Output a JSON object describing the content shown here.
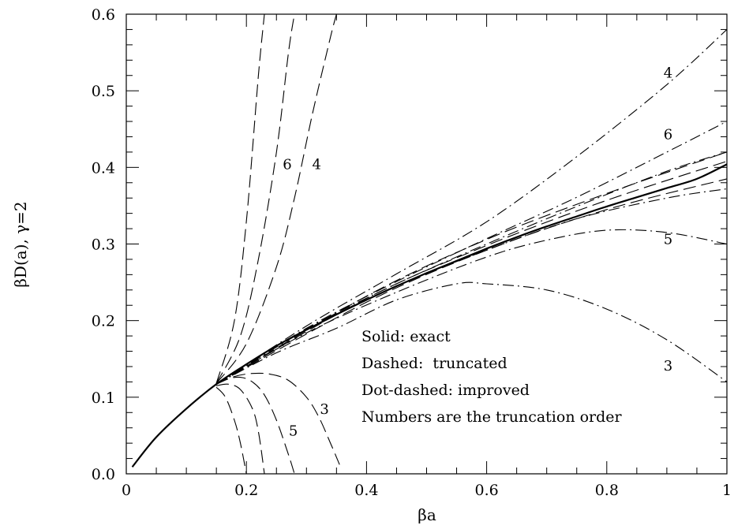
{
  "chart_data": {
    "type": "line",
    "xlabel": "βa",
    "ylabel": "βD(a), γ=2",
    "xlim": [
      0,
      1
    ],
    "ylim": [
      0,
      0.6
    ],
    "xticks": [
      "0",
      "0.2",
      "0.4",
      "0.6",
      "0.8",
      "1"
    ],
    "yticks": [
      "0.0",
      "0.1",
      "0.2",
      "0.3",
      "0.4",
      "0.5",
      "0.6"
    ],
    "grid": false,
    "legend_lines": [
      "Solid: exact",
      "Dashed:  truncated",
      "Dot-dashed: improved",
      "Numbers are the truncation order"
    ],
    "series": [
      {
        "style": "solid",
        "x": [
          0.01,
          0.05,
          0.1,
          0.15,
          0.2,
          0.25,
          0.3,
          0.35,
          0.4,
          0.45,
          0.5,
          0.55,
          0.6,
          0.65,
          0.7,
          0.75,
          0.8,
          0.85,
          0.9,
          0.95,
          1.0
        ],
        "y": [
          0.009,
          0.048,
          0.085,
          0.117,
          0.143,
          0.167,
          0.188,
          0.208,
          0.227,
          0.245,
          0.262,
          0.278,
          0.294,
          0.309,
          0.323,
          0.336,
          0.349,
          0.361,
          0.373,
          0.385,
          0.404
        ]
      },
      {
        "style": "dashed",
        "order": "3",
        "x": [
          0.15,
          0.18,
          0.21,
          0.24,
          0.27,
          0.3,
          0.32,
          0.34,
          0.355
        ],
        "y": [
          0.117,
          0.127,
          0.131,
          0.13,
          0.122,
          0.1,
          0.075,
          0.04,
          0.012
        ]
      },
      {
        "style": "dashed",
        "order": "5",
        "x": [
          0.15,
          0.17,
          0.19,
          0.21,
          0.23,
          0.25,
          0.27,
          0.28
        ],
        "y": [
          0.117,
          0.124,
          0.126,
          0.12,
          0.103,
          0.07,
          0.025,
          0.0
        ]
      },
      {
        "style": "dashed",
        "order": "",
        "x": [
          0.15,
          0.17,
          0.19,
          0.21,
          0.22,
          0.23
        ],
        "y": [
          0.115,
          0.117,
          0.11,
          0.085,
          0.055,
          0.0
        ]
      },
      {
        "style": "dashed",
        "order": "",
        "x": [
          0.15,
          0.165,
          0.18,
          0.19,
          0.2
        ],
        "y": [
          0.113,
          0.1,
          0.07,
          0.04,
          0.0
        ]
      },
      {
        "style": "dashed",
        "order": "4",
        "x": [
          0.15,
          0.2,
          0.25,
          0.28,
          0.31,
          0.34,
          0.35
        ],
        "y": [
          0.118,
          0.17,
          0.27,
          0.36,
          0.47,
          0.57,
          0.6
        ]
      },
      {
        "style": "dashed",
        "order": "6",
        "x": [
          0.15,
          0.19,
          0.22,
          0.25,
          0.27,
          0.28
        ],
        "y": [
          0.118,
          0.18,
          0.28,
          0.42,
          0.55,
          0.6
        ]
      },
      {
        "style": "dashed",
        "order": "",
        "x": [
          0.15,
          0.18,
          0.2,
          0.22,
          0.23
        ],
        "y": [
          0.118,
          0.2,
          0.33,
          0.52,
          0.6
        ]
      },
      {
        "style": "dashed",
        "order": "",
        "x": [
          0.15,
          0.4,
          0.6,
          0.8,
          1.0
        ],
        "y": [
          0.117,
          0.232,
          0.306,
          0.366,
          0.42
        ]
      },
      {
        "style": "dashed",
        "order": "",
        "x": [
          0.15,
          0.4,
          0.6,
          0.8,
          1.0
        ],
        "y": [
          0.117,
          0.224,
          0.292,
          0.345,
          0.385
        ]
      },
      {
        "style": "dashed",
        "order": "",
        "x": [
          0.15,
          0.4,
          0.6,
          0.8,
          1.0
        ],
        "y": [
          0.117,
          0.229,
          0.298,
          0.357,
          0.408
        ]
      },
      {
        "style": "dotdash",
        "order": "4",
        "x": [
          0.15,
          0.3,
          0.45,
          0.6,
          0.75,
          0.9,
          1.0
        ],
        "y": [
          0.117,
          0.193,
          0.261,
          0.329,
          0.414,
          0.508,
          0.58
        ]
      },
      {
        "style": "dotdash",
        "order": "6",
        "x": [
          0.15,
          0.3,
          0.45,
          0.6,
          0.75,
          0.9,
          1.0
        ],
        "y": [
          0.117,
          0.19,
          0.251,
          0.307,
          0.361,
          0.42,
          0.46
        ]
      },
      {
        "style": "dotdash",
        "order": "",
        "x": [
          0.15,
          0.3,
          0.45,
          0.6,
          0.75,
          0.9,
          1.0
        ],
        "y": [
          0.117,
          0.189,
          0.248,
          0.3,
          0.349,
          0.395,
          0.42
        ]
      },
      {
        "style": "dotdash",
        "order": "",
        "x": [
          0.15,
          0.3,
          0.45,
          0.6,
          0.75,
          0.9,
          1.0
        ],
        "y": [
          0.117,
          0.188,
          0.245,
          0.292,
          0.333,
          0.36,
          0.372
        ]
      },
      {
        "style": "dotdash",
        "order": "5",
        "x": [
          0.15,
          0.3,
          0.45,
          0.6,
          0.7,
          0.8,
          0.9,
          1.0
        ],
        "y": [
          0.117,
          0.184,
          0.237,
          0.283,
          0.305,
          0.318,
          0.315,
          0.3
        ]
      },
      {
        "style": "dotdash",
        "order": "3",
        "x": [
          0.15,
          0.25,
          0.35,
          0.45,
          0.55,
          0.6,
          0.7,
          0.8,
          0.9,
          1.0
        ],
        "y": [
          0.117,
          0.158,
          0.19,
          0.227,
          0.248,
          0.248,
          0.24,
          0.215,
          0.175,
          0.12
        ]
      }
    ],
    "curve_labels": [
      {
        "text": "6",
        "x": 0.268,
        "y": 0.398
      },
      {
        "text": "4",
        "x": 0.317,
        "y": 0.398
      },
      {
        "text": "3",
        "x": 0.33,
        "y": 0.078
      },
      {
        "text": "5",
        "x": 0.278,
        "y": 0.05
      },
      {
        "text": "4",
        "x": 0.902,
        "y": 0.517
      },
      {
        "text": "6",
        "x": 0.902,
        "y": 0.437
      },
      {
        "text": "5",
        "x": 0.902,
        "y": 0.3
      },
      {
        "text": "3",
        "x": 0.902,
        "y": 0.135
      }
    ]
  }
}
